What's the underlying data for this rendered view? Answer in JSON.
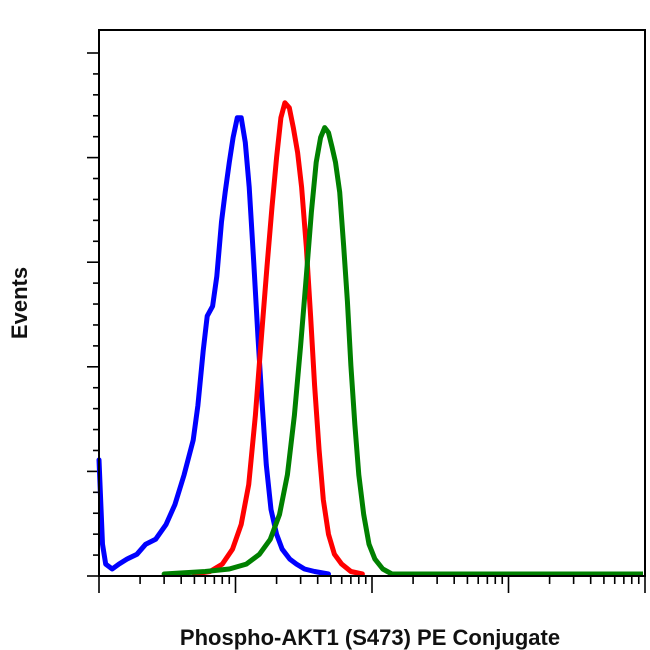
{
  "chart_data": {
    "type": "line",
    "title": "",
    "xlabel": "Phospho-AKT1 (S473) PE Conjugate",
    "ylabel": "Events",
    "x_scale": "log",
    "xlim": [
      1,
      10000
    ],
    "ylim": [
      0,
      1
    ],
    "grid": false,
    "legend": "none",
    "series": [
      {
        "color": "#0000ff",
        "points": [
          [
            1.0,
            0.23
          ],
          [
            1.06,
            0.06
          ],
          [
            1.12,
            0.02
          ],
          [
            1.25,
            0.01
          ],
          [
            1.4,
            0.02
          ],
          [
            1.6,
            0.03
          ],
          [
            1.9,
            0.04
          ],
          [
            2.2,
            0.06
          ],
          [
            2.6,
            0.07
          ],
          [
            3.1,
            0.1
          ],
          [
            3.6,
            0.14
          ],
          [
            4.2,
            0.2
          ],
          [
            4.9,
            0.27
          ],
          [
            5.3,
            0.34
          ],
          [
            5.8,
            0.45
          ],
          [
            6.2,
            0.52
          ],
          [
            6.8,
            0.54
          ],
          [
            7.3,
            0.6
          ],
          [
            7.9,
            0.71
          ],
          [
            8.4,
            0.77
          ],
          [
            9.0,
            0.83
          ],
          [
            9.6,
            0.88
          ],
          [
            10.3,
            0.92
          ],
          [
            11.0,
            0.92
          ],
          [
            11.8,
            0.87
          ],
          [
            12.6,
            0.78
          ],
          [
            13.6,
            0.63
          ],
          [
            14.6,
            0.48
          ],
          [
            15.6,
            0.35
          ],
          [
            16.8,
            0.22
          ],
          [
            18.2,
            0.13
          ],
          [
            20.0,
            0.08
          ],
          [
            22.0,
            0.05
          ],
          [
            25.0,
            0.03
          ],
          [
            28.0,
            0.02
          ],
          [
            32.0,
            0.01
          ],
          [
            38.0,
            0.005
          ],
          [
            48.0,
            0.0
          ]
        ]
      },
      {
        "color": "#ff0000",
        "points": [
          [
            5.0,
            0.0
          ],
          [
            6.5,
            0.005
          ],
          [
            8.0,
            0.02
          ],
          [
            9.5,
            0.05
          ],
          [
            11.0,
            0.1
          ],
          [
            12.5,
            0.18
          ],
          [
            14.0,
            0.32
          ],
          [
            15.5,
            0.48
          ],
          [
            17.0,
            0.62
          ],
          [
            18.5,
            0.74
          ],
          [
            20.0,
            0.84
          ],
          [
            21.5,
            0.92
          ],
          [
            23.0,
            0.95
          ],
          [
            24.8,
            0.94
          ],
          [
            26.5,
            0.9
          ],
          [
            28.5,
            0.85
          ],
          [
            30.5,
            0.78
          ],
          [
            33.0,
            0.66
          ],
          [
            35.5,
            0.52
          ],
          [
            38.0,
            0.38
          ],
          [
            41.0,
            0.25
          ],
          [
            44.0,
            0.15
          ],
          [
            48.0,
            0.08
          ],
          [
            53.0,
            0.04
          ],
          [
            60.0,
            0.02
          ],
          [
            70.0,
            0.005
          ],
          [
            85.0,
            0.0
          ]
        ]
      },
      {
        "color": "#008000",
        "points": [
          [
            3.0,
            0.0
          ],
          [
            6.0,
            0.005
          ],
          [
            9.0,
            0.01
          ],
          [
            12.0,
            0.02
          ],
          [
            15.0,
            0.04
          ],
          [
            18.0,
            0.07
          ],
          [
            21.0,
            0.12
          ],
          [
            24.0,
            0.2
          ],
          [
            27.0,
            0.32
          ],
          [
            30.0,
            0.46
          ],
          [
            33.0,
            0.6
          ],
          [
            36.0,
            0.73
          ],
          [
            39.0,
            0.83
          ],
          [
            42.0,
            0.88
          ],
          [
            45.0,
            0.9
          ],
          [
            48.0,
            0.89
          ],
          [
            51.0,
            0.86
          ],
          [
            54.0,
            0.83
          ],
          [
            58.0,
            0.77
          ],
          [
            62.0,
            0.66
          ],
          [
            66.0,
            0.55
          ],
          [
            70.0,
            0.42
          ],
          [
            75.0,
            0.3
          ],
          [
            80.0,
            0.2
          ],
          [
            87.0,
            0.12
          ],
          [
            95.0,
            0.06
          ],
          [
            105.0,
            0.03
          ],
          [
            120.0,
            0.01
          ],
          [
            140.0,
            0.0
          ]
        ]
      }
    ],
    "baseline": {
      "color": "#008000",
      "x": [
        140.0,
        10000.0
      ],
      "y": 0.0
    }
  }
}
